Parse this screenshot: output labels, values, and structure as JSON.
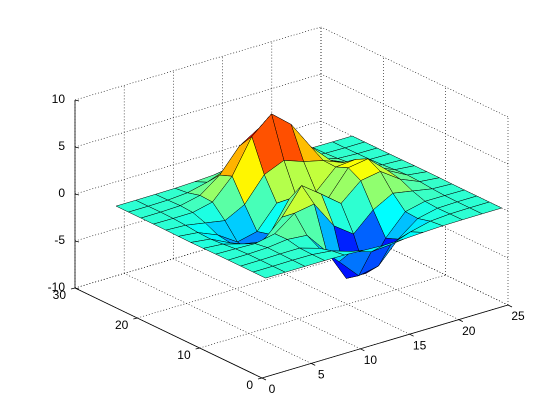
{
  "chart_data": {
    "type": "surface",
    "colormap": "jet",
    "grid": true,
    "x": [
      1,
      3,
      5,
      7,
      9,
      11,
      13,
      15,
      17,
      19,
      21,
      23,
      25
    ],
    "y": [
      1,
      3,
      5,
      7,
      9,
      11,
      13,
      15,
      17,
      19,
      21,
      23,
      25
    ],
    "z": [
      [
        0,
        0,
        0,
        0,
        -0.03,
        -0.14,
        -0.24,
        -0.22,
        -0.11,
        -0.03,
        -0.01,
        0,
        0
      ],
      [
        0,
        0,
        0.02,
        0,
        -0.23,
        -0.91,
        -1.57,
        -1.41,
        -0.69,
        -0.18,
        -0.03,
        0,
        0
      ],
      [
        0,
        0.01,
        0.05,
        0.05,
        -0.59,
        -2.64,
        -4.75,
        -4.34,
        -2.11,
        -0.53,
        -0.06,
        0,
        0
      ],
      [
        0,
        0.01,
        0.08,
        0.33,
        0.15,
        -2.19,
        -5.68,
        -5.76,
        -2.64,
        -0.44,
        0.04,
        0.03,
        0
      ],
      [
        -0.01,
        -0.06,
        -0.13,
        0.3,
        1.86,
        2.22,
        -0.72,
        -2.22,
        -0.27,
        0.88,
        0.5,
        0.11,
        0.01
      ],
      [
        -0.03,
        -0.2,
        -0.8,
        -1.21,
        0.8,
        3.55,
        2,
        0.39,
        2.2,
        2.56,
        1.12,
        0.24,
        0.03
      ],
      [
        -0.04,
        -0.3,
        -1.33,
        -2.77,
        -1.65,
        1.48,
        0.98,
        0.38,
        2.94,
        3.27,
        1.41,
        0.3,
        0.03
      ],
      [
        -0.03,
        -0.25,
        -1.12,
        -2.49,
        -2,
        0.39,
        0.46,
        0.38,
        2.38,
        2.56,
        1.09,
        0.23,
        0.03
      ],
      [
        -0.01,
        -0.11,
        -0.48,
        -0.86,
        0.23,
        2.79,
        3.69,
        2.94,
        2.43,
        1.58,
        0.58,
        0.11,
        0.01
      ],
      [
        0,
        -0.02,
        -0.01,
        0.48,
        2.61,
        6.2,
        8,
        6.25,
        3.26,
        1.19,
        0.29,
        0.05,
        0
      ],
      [
        0,
        0.01,
        0.08,
        0.55,
        2.09,
        4.55,
        5.85,
        4.56,
        2.21,
        0.68,
        0.13,
        0.02,
        0
      ],
      [
        0,
        0,
        0.03,
        0.19,
        0.69,
        1.47,
        1.88,
        1.47,
        0.7,
        0.2,
        0.04,
        0,
        0
      ],
      [
        0,
        0,
        0.01,
        0.03,
        0.11,
        0.23,
        0.3,
        0.23,
        0.11,
        0.03,
        0.01,
        0,
        0
      ]
    ],
    "xlim": [
      0,
      25
    ],
    "xticks": [
      0,
      5,
      10,
      15,
      20,
      25
    ],
    "ylim": [
      0,
      30
    ],
    "yticks": [
      0,
      10,
      20,
      30
    ],
    "zlim": [
      -10,
      10
    ],
    "zticks": [
      -10,
      -5,
      0,
      5,
      10
    ]
  }
}
